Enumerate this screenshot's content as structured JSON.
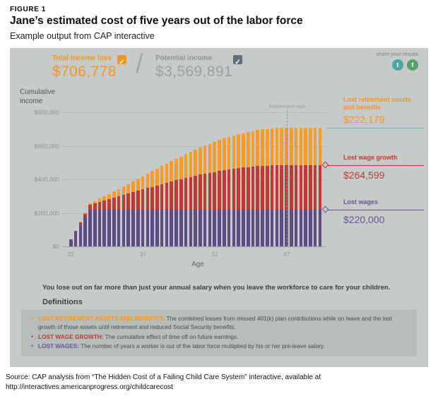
{
  "figure": {
    "label": "FIGURE 1",
    "title": "Jane’s estimated cost of five years out of the labor force",
    "subtitle": "Example output from CAP interactive"
  },
  "controls": {
    "total_income_loss": {
      "label": "Total income loss",
      "value": "$706,778",
      "checked": true
    },
    "divider": "/",
    "potential_income": {
      "label": "Potential income",
      "value": "$3,569,891",
      "checked": true
    },
    "share": {
      "label": "share your results",
      "icons": [
        "twitter-icon",
        "facebook-icon"
      ]
    }
  },
  "chart_data": {
    "type": "bar",
    "stacked": true,
    "ylabel": "Cumulative income",
    "xlabel": "Age",
    "ylim": [
      0,
      800000
    ],
    "grid": true,
    "y_ticks": [
      {
        "value": 0,
        "label": "$0"
      },
      {
        "value": 200000,
        "label": "$200,000"
      },
      {
        "value": 400000,
        "label": "$400,000"
      },
      {
        "value": 600000,
        "label": "$600,000"
      },
      {
        "value": 800000,
        "label": "$800,000"
      }
    ],
    "x_ticks": [
      22,
      37,
      52,
      67
    ],
    "retirement_line": {
      "label": "Retirement age",
      "age": 67
    },
    "ages": [
      22,
      23,
      24,
      25,
      26,
      27,
      28,
      29,
      30,
      31,
      32,
      33,
      34,
      35,
      36,
      37,
      38,
      39,
      40,
      41,
      42,
      43,
      44,
      45,
      46,
      47,
      48,
      49,
      50,
      51,
      52,
      53,
      54,
      55,
      56,
      57,
      58,
      59,
      60,
      61,
      62,
      63,
      64,
      65,
      66,
      67,
      68,
      69,
      70,
      71,
      72,
      73,
      74
    ],
    "series": [
      {
        "name": "Lost wages",
        "color": "#5e4b87",
        "total": 220000,
        "values": [
          44000,
          88000,
          132000,
          176000,
          220000,
          220000,
          220000,
          220000,
          220000,
          220000,
          220000,
          220000,
          220000,
          220000,
          220000,
          220000,
          220000,
          220000,
          220000,
          220000,
          220000,
          220000,
          220000,
          220000,
          220000,
          220000,
          220000,
          220000,
          220000,
          220000,
          220000,
          220000,
          220000,
          220000,
          220000,
          220000,
          220000,
          220000,
          220000,
          220000,
          220000,
          220000,
          220000,
          220000,
          220000,
          220000,
          220000,
          220000,
          220000,
          220000,
          220000,
          220000,
          220000
        ]
      },
      {
        "name": "Lost wage growth",
        "color": "#c23a30",
        "total": 264599,
        "values": [
          0,
          5600,
          12400,
          19700,
          27400,
          35300,
          43500,
          51800,
          60100,
          68600,
          77100,
          85600,
          94000,
          102500,
          110900,
          119200,
          127500,
          135600,
          143600,
          151500,
          159200,
          166700,
          174100,
          181100,
          188000,
          194700,
          201200,
          207400,
          213300,
          218900,
          224200,
          229300,
          234000,
          238400,
          242600,
          246300,
          249800,
          252900,
          255600,
          258000,
          260000,
          261700,
          262900,
          263900,
          264400,
          264599,
          264599,
          264599,
          264599,
          264599,
          264599,
          264599,
          264599
        ]
      },
      {
        "name": "Lost retirement assets and benefits",
        "color": "#f89b2a",
        "total": 222179,
        "values": [
          0,
          1450,
          4100,
          7500,
          11500,
          16100,
          21100,
          26400,
          32100,
          38200,
          44400,
          50900,
          57600,
          64500,
          71500,
          78600,
          85700,
          92900,
          100100,
          107300,
          114500,
          121600,
          128600,
          135500,
          142300,
          148900,
          155400,
          161700,
          167700,
          173500,
          179100,
          184300,
          189300,
          194000,
          198400,
          202400,
          206100,
          209400,
          212400,
          214900,
          217100,
          219000,
          220300,
          221400,
          222000,
          222179,
          222179,
          222179,
          222179,
          222179,
          222179,
          222179,
          222179
        ]
      }
    ]
  },
  "annotations": {
    "retirement": {
      "line1": "Lost retirement assets",
      "line2": "and benefits",
      "value": "$222,179",
      "line_value": 706778
    },
    "wage_growth": {
      "label": "Lost wage growth",
      "value": "$264,599",
      "line_value": 484599
    },
    "wages": {
      "label": "Lost wages",
      "value": "$220,000",
      "line_value": 220000
    }
  },
  "message": "You lose out on far more than just your annual salary when you leave the workforce to care for your children.",
  "definitions": {
    "heading": "Definitions",
    "items": [
      {
        "term": "LOST RETIREMENT ASSETS AND BENEFITS:",
        "color": "#f7941e",
        "text": "The combined losses from missed 401(k) plan contributions while on leave and the lost growth of those assets until retirement and reduced Social Security benefits."
      },
      {
        "term": "LOST WAGE GROWTH:",
        "color": "#c0392e",
        "text": "The cumulative effect of time off on future earnings."
      },
      {
        "term": "LOST WAGES:",
        "color": "#6a5494",
        "text": "The number of years a worker is out of the labor force multiplied by his or her pre-leave salary."
      }
    ]
  },
  "source": {
    "line1": "Source: CAP analysis from “The Hidden Cost of a Failing Child Care System” interactive, available at",
    "line2": "http://interactives.americanprogress.org/childcarecost"
  },
  "colors": {
    "orange": "#f7941e",
    "red": "#c0392e",
    "purple_bar": "#5e4b87",
    "purple_text": "#6a5494",
    "panel_bg": "#c6cac9",
    "definitions_bg": "#b7bdbc",
    "twitter": "#4ba5a3",
    "facebook": "#53a06b"
  }
}
